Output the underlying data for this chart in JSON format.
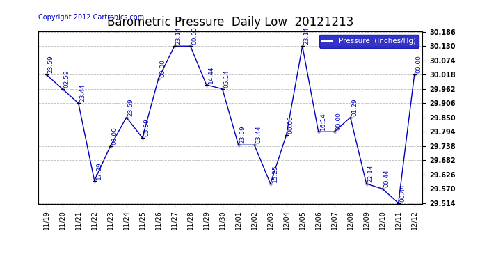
{
  "title": "Barometric Pressure  Daily Low  20121213",
  "copyright": "Copyright 2012 Cartronics.com",
  "legend_label": "Pressure  (Inches/Hg)",
  "x_labels": [
    "11/19",
    "11/20",
    "11/21",
    "11/22",
    "11/23",
    "11/24",
    "11/25",
    "11/26",
    "11/27",
    "11/28",
    "11/29",
    "11/30",
    "12/01",
    "12/02",
    "12/03",
    "12/04",
    "12/05",
    "12/06",
    "12/07",
    "12/08",
    "12/09",
    "12/10",
    "12/11",
    "12/12"
  ],
  "y_values": [
    30.018,
    29.962,
    29.906,
    29.602,
    29.738,
    29.85,
    29.77,
    30.002,
    30.13,
    30.13,
    29.978,
    29.962,
    29.742,
    29.742,
    29.59,
    29.782,
    30.13,
    29.794,
    29.794,
    29.85,
    29.59,
    29.57,
    29.514,
    30.018
  ],
  "time_labels": [
    "23:59",
    "02:59",
    "23:44",
    "17:29",
    "00:00",
    "23:59",
    "05:59",
    "00:00",
    "23:14",
    "00:00",
    "14:44",
    "05:14",
    "23:59",
    "03:44",
    "15:25",
    "00:00",
    "23:14",
    "16:14",
    "00:00",
    "01:29",
    "22:14",
    "00:44",
    "00:44",
    "00:00"
  ],
  "line_color": "#0000bb",
  "marker_color": "#000000",
  "label_color": "#0000bb",
  "background_color": "#ffffff",
  "grid_color": "#bbbbbb",
  "legend_bg": "#0000bb",
  "legend_fg": "#ffffff",
  "y_min": 29.514,
  "y_max": 30.186,
  "y_ticks": [
    29.514,
    29.57,
    29.626,
    29.682,
    29.738,
    29.794,
    29.85,
    29.906,
    29.962,
    30.018,
    30.074,
    30.13,
    30.186
  ],
  "title_fontsize": 12,
  "tick_fontsize": 7,
  "label_fontsize": 6.5,
  "copyright_fontsize": 7
}
